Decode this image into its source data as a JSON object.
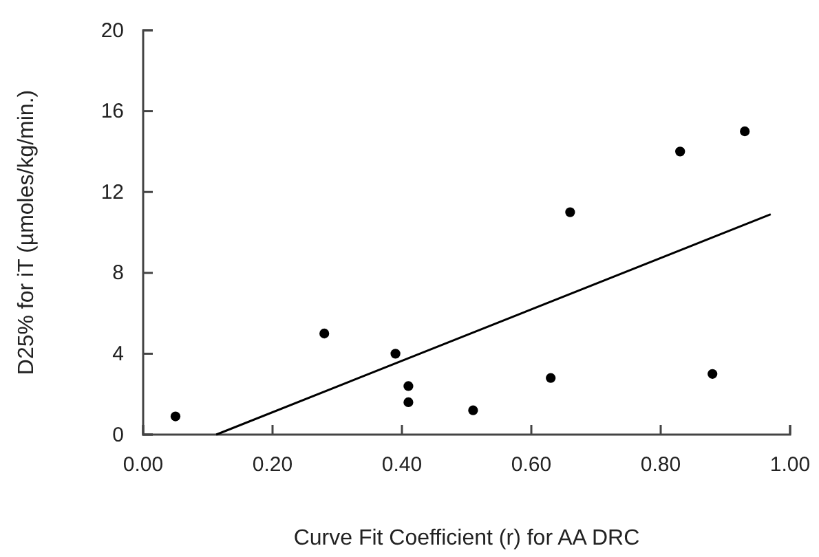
{
  "chart_data": {
    "type": "scatter",
    "xlabel": "Curve Fit Coefficient (r) for AA DRC",
    "ylabel": "D25% for iT (µmoles/kg/min.)",
    "xlim": [
      0,
      1
    ],
    "ylim": [
      0,
      20
    ],
    "xticks": [
      {
        "value": 0,
        "label": "0.00"
      },
      {
        "value": 0.2,
        "label": "0.20"
      },
      {
        "value": 0.4,
        "label": "0.40"
      },
      {
        "value": 0.6,
        "label": "0.60"
      },
      {
        "value": 0.8,
        "label": "0.80"
      },
      {
        "value": 1,
        "label": "1.00"
      }
    ],
    "yticks": [
      0,
      4,
      8,
      12,
      16,
      20
    ],
    "grid": false,
    "series": [
      {
        "marker": "circle",
        "color": "#000000",
        "x": [
          0.05,
          0.28,
          0.39,
          0.41,
          0.41,
          0.51,
          0.63,
          0.66,
          0.83,
          0.88,
          0.93
        ],
        "values": [
          0.9,
          5.0,
          4.0,
          2.4,
          1.6,
          1.2,
          2.8,
          11.0,
          14.0,
          3.0,
          15.0
        ]
      },
      {
        "type": "line",
        "marker": "none",
        "color": "#000000",
        "x": [
          0.113,
          0.97
        ],
        "values": [
          0,
          10.9
        ]
      }
    ]
  }
}
